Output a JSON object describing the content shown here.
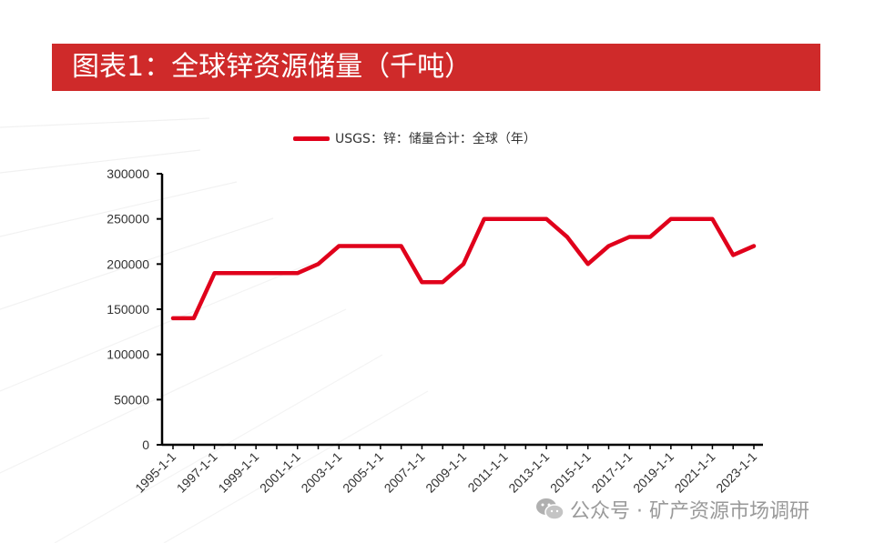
{
  "header": {
    "title": "图表1：全球锌资源储量（千吨）",
    "bar_color": "#cf2a2a"
  },
  "watermark": {
    "icon": "wechat-icon",
    "text": "公众号 · 矿产资源市场调研"
  },
  "chart_data": {
    "type": "line",
    "title": "图表1：全球锌资源储量（千吨）",
    "xlabel": "",
    "ylabel": "",
    "ylim": [
      0,
      300000
    ],
    "yticks": [
      0,
      50000,
      100000,
      150000,
      200000,
      250000,
      300000
    ],
    "ytick_labels": [
      "0",
      "50000",
      "100000",
      "150000",
      "200000",
      "250000",
      "300000"
    ],
    "xtick_labels": [
      "1995-1-1",
      "1997-1-1",
      "1999-1-1",
      "2001-1-1",
      "2003-1-1",
      "2005-1-1",
      "2007-1-1",
      "2009-1-1",
      "2011-1-1",
      "2013-1-1",
      "2015-1-1",
      "2017-1-1",
      "2019-1-1",
      "2021-1-1",
      "2023-1-1"
    ],
    "x": [
      "1995-1-1",
      "1996-1-1",
      "1997-1-1",
      "1998-1-1",
      "1999-1-1",
      "2000-1-1",
      "2001-1-1",
      "2002-1-1",
      "2003-1-1",
      "2004-1-1",
      "2005-1-1",
      "2006-1-1",
      "2007-1-1",
      "2008-1-1",
      "2009-1-1",
      "2010-1-1",
      "2011-1-1",
      "2012-1-1",
      "2013-1-1",
      "2014-1-1",
      "2015-1-1",
      "2016-1-1",
      "2017-1-1",
      "2018-1-1",
      "2019-1-1",
      "2020-1-1",
      "2021-1-1",
      "2022-1-1",
      "2023-1-1"
    ],
    "series": [
      {
        "name": "USGS：锌：储量合计：全球（年）",
        "color": "#e0001b",
        "values": [
          140000,
          140000,
          190000,
          190000,
          190000,
          190000,
          190000,
          200000,
          220000,
          220000,
          220000,
          220000,
          180000,
          180000,
          200000,
          250000,
          250000,
          250000,
          250000,
          230000,
          200000,
          220000,
          230000,
          230000,
          250000,
          250000,
          250000,
          210000,
          220000
        ]
      }
    ],
    "grid": false,
    "legend_position": "top"
  }
}
